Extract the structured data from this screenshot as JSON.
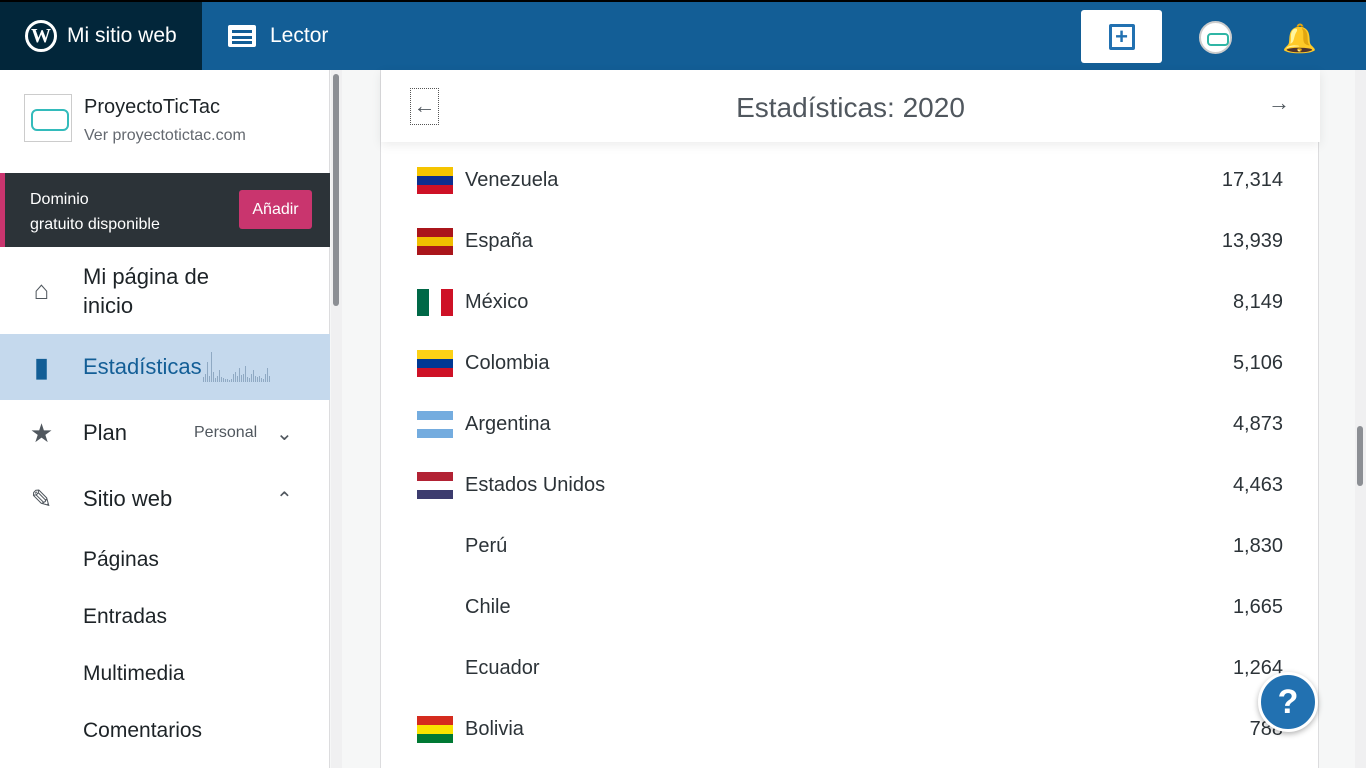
{
  "topbar": {
    "my_site": "Mi sitio web",
    "reader": "Lector",
    "wp_logo": "W"
  },
  "sidebar": {
    "site_name": "ProyectoTicTac",
    "site_link": "Ver proyectotictac.com",
    "domain_line1": "Dominio",
    "domain_line2": "gratuito disponible",
    "domain_button": "Añadir",
    "home": "Mi página de inicio",
    "stats": "Estadísticas",
    "plan": "Plan",
    "plan_badge": "Personal",
    "site": "Sitio web",
    "sub": [
      "Páginas",
      "Entradas",
      "Multimedia",
      "Comentarios"
    ]
  },
  "main": {
    "title": "Estadísticas: 2020",
    "rows": [
      {
        "country": "Venezuela",
        "views": "17,314",
        "flag": [
          "#f5c400",
          "#0d2e8f",
          "#ce1126"
        ]
      },
      {
        "country": "España",
        "views": "13,939",
        "flag": [
          "#aa151b",
          "#f1bf00",
          "#aa151b"
        ]
      },
      {
        "country": "México",
        "views": "8,149",
        "flag": [
          "#006847",
          "#ffffff",
          "#ce1126"
        ]
      },
      {
        "country": "Colombia",
        "views": "5,106",
        "flag": [
          "#fcd116",
          "#003893",
          "#ce1126"
        ]
      },
      {
        "country": "Argentina",
        "views": "4,873",
        "flag": [
          "#74acdf",
          "#ffffff",
          "#74acdf"
        ]
      },
      {
        "country": "Estados Unidos",
        "views": "4,463",
        "flag": [
          "#b22234",
          "#ffffff",
          "#3c3b6e"
        ]
      },
      {
        "country": "Perú",
        "views": "1,830"
      },
      {
        "country": "Chile",
        "views": "1,665"
      },
      {
        "country": "Ecuador",
        "views": "1,264"
      },
      {
        "country": "Bolivia",
        "views": "788",
        "flag": [
          "#d52b1e",
          "#f9e300",
          "#007934"
        ]
      }
    ]
  },
  "help": "?"
}
